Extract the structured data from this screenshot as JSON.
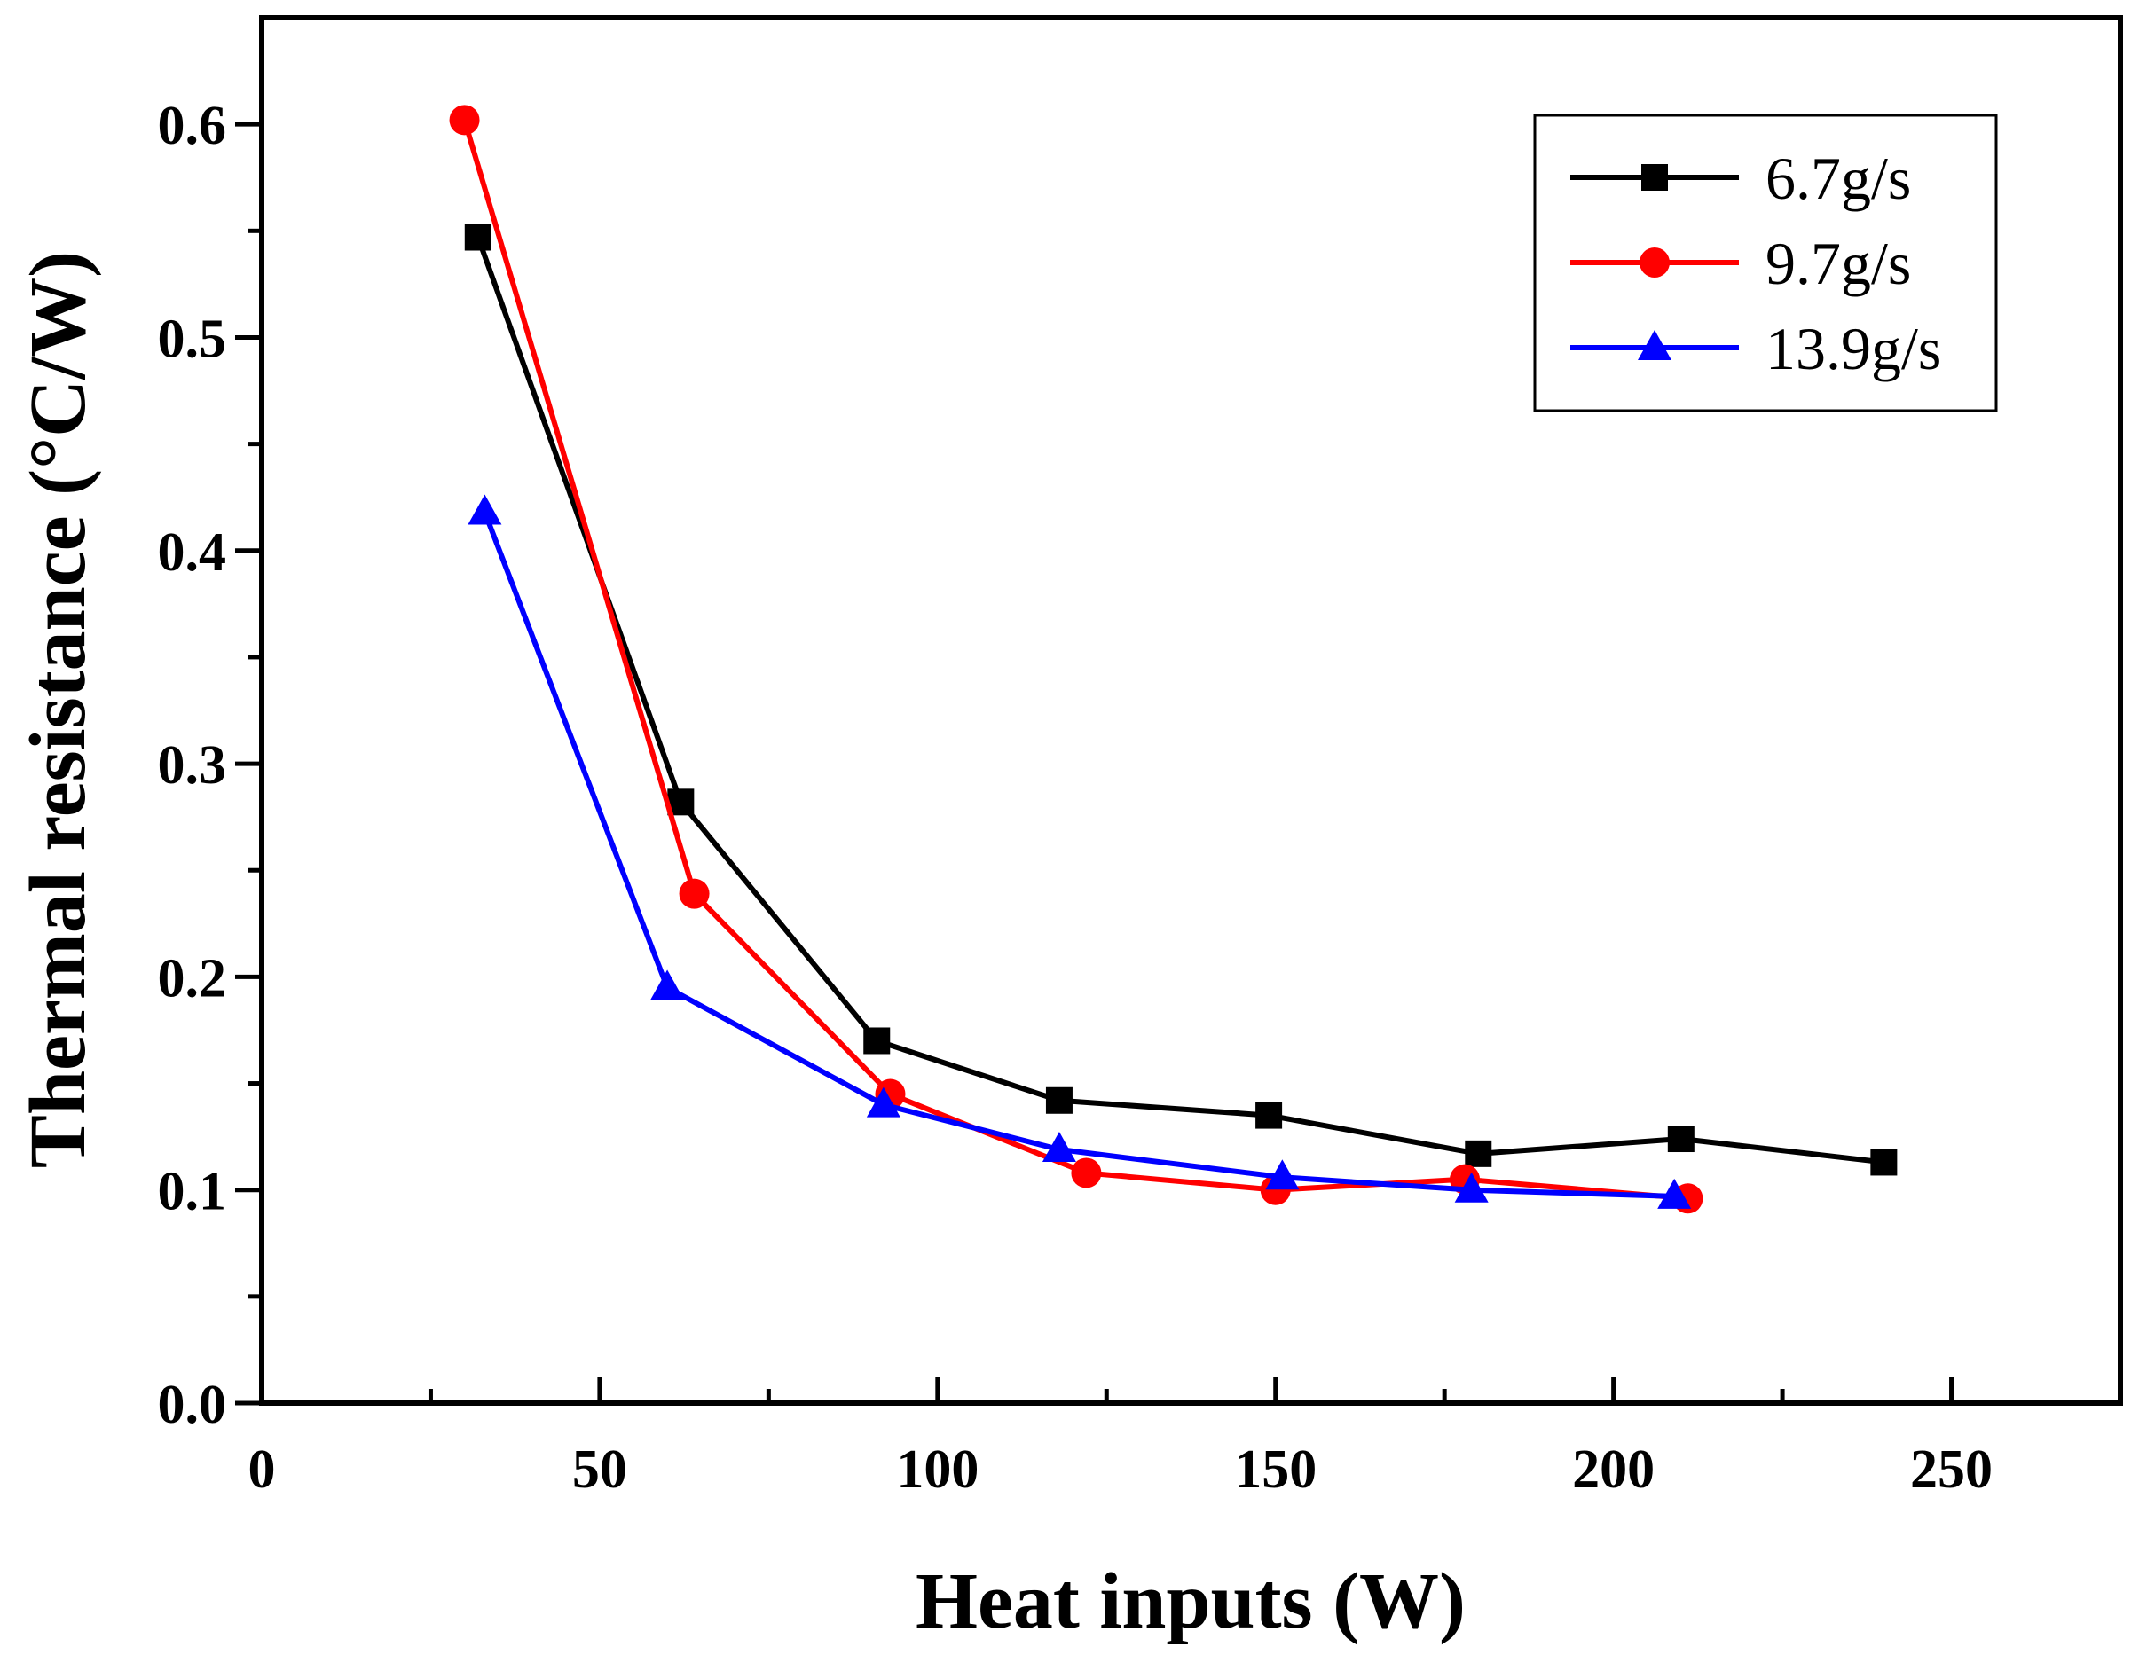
{
  "chart_data": {
    "type": "line",
    "title": "",
    "xlabel": "Heat inputs (W)",
    "ylabel": "Thermal resistance (°C/W)",
    "xlim": [
      0,
      275
    ],
    "ylim": [
      0,
      0.65
    ],
    "x_ticks": [
      "0",
      "50",
      "100",
      "150",
      "200",
      "250"
    ],
    "x_tick_values": [
      0,
      50,
      100,
      150,
      200,
      250
    ],
    "y_ticks": [
      "0.0",
      "0.1",
      "0.2",
      "0.3",
      "0.4",
      "0.5",
      "0.6"
    ],
    "y_tick_values": [
      0,
      0.1,
      0.2,
      0.3,
      0.4,
      0.5,
      0.6
    ],
    "legend_position": "top-right",
    "series": [
      {
        "name": "6.7g/s",
        "color": "#000000",
        "marker": "square",
        "x": [
          32,
          62,
          91,
          118,
          149,
          180,
          210,
          240
        ],
        "y": [
          0.547,
          0.282,
          0.17,
          0.142,
          0.135,
          0.117,
          0.124,
          0.113
        ]
      },
      {
        "name": "9.7g/s",
        "color": "#ff0000",
        "marker": "circle",
        "x": [
          30,
          64,
          93,
          122,
          150,
          178,
          211
        ],
        "y": [
          0.602,
          0.239,
          0.145,
          0.108,
          0.1,
          0.105,
          0.096
        ]
      },
      {
        "name": "13.9g/s",
        "color": "#0000ff",
        "marker": "triangle",
        "x": [
          33,
          60,
          92,
          118,
          151,
          179,
          209
        ],
        "y": [
          0.418,
          0.195,
          0.14,
          0.119,
          0.106,
          0.1,
          0.097
        ]
      }
    ]
  }
}
